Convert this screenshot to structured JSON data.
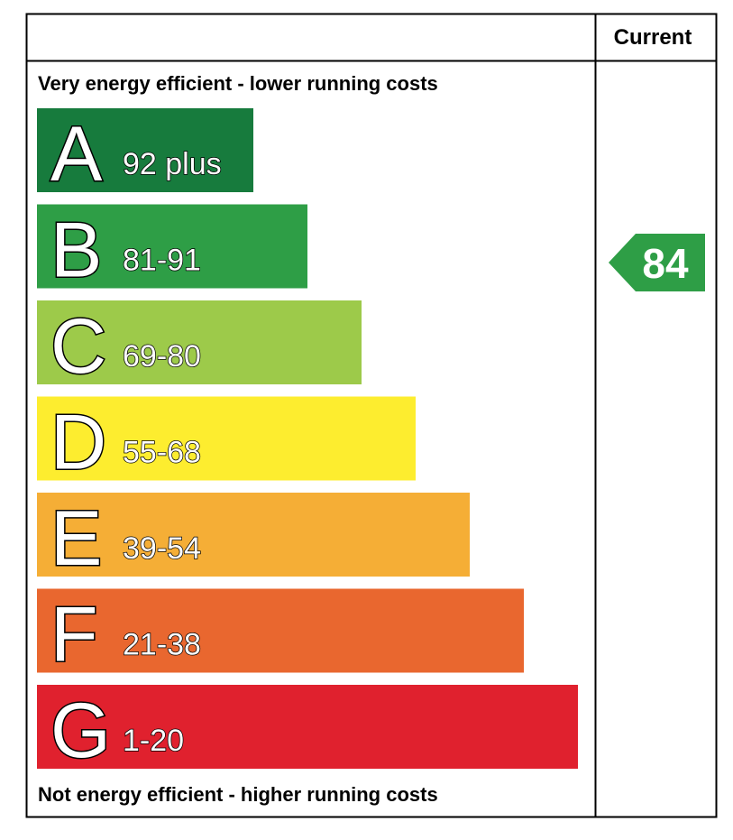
{
  "header": {
    "column": "Current"
  },
  "top_label": "Very energy efficient - lower running costs",
  "bottom_label": "Not energy efficient - higher running costs",
  "bands": [
    {
      "letter": "A",
      "range": "92 plus",
      "color": "#177b3d"
    },
    {
      "letter": "B",
      "range": "81-91",
      "color": "#2e9e46"
    },
    {
      "letter": "C",
      "range": "69-80",
      "color": "#9dca4a"
    },
    {
      "letter": "D",
      "range": "55-68",
      "color": "#fded2f"
    },
    {
      "letter": "E",
      "range": "39-54",
      "color": "#f5ae36"
    },
    {
      "letter": "F",
      "range": "21-38",
      "color": "#e9672f"
    },
    {
      "letter": "G",
      "range": "1-20",
      "color": "#e0212e"
    }
  ],
  "current": {
    "value": 84,
    "color": "#2e9e46"
  }
}
